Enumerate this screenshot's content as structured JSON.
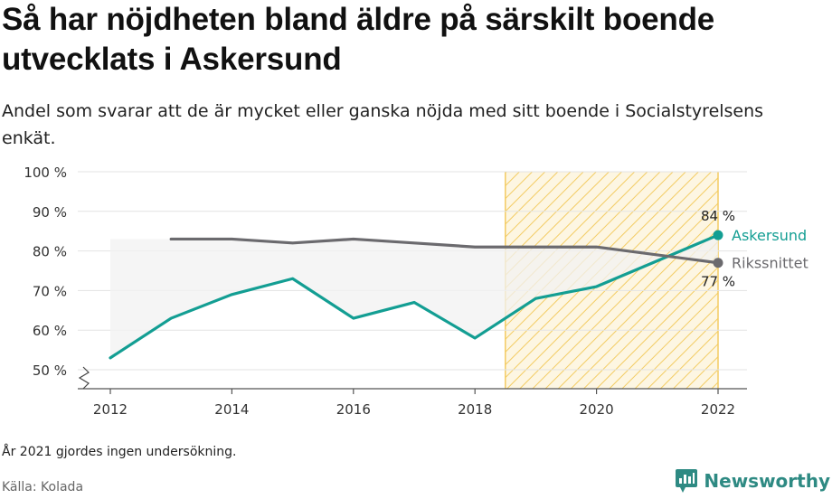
{
  "title": "Så har nöjdheten bland äldre på särskilt boende utvecklats i Askersund",
  "subtitle": "Andel som svarar att de är mycket eller ganska nöjda med sitt boende i Socialstyrelsens enkät.",
  "note": "År 2021 gjordes ingen undersökning.",
  "source": "Källa: Kolada",
  "brand": "Newsworthy",
  "colors": {
    "askersund": "#139e93",
    "riksnittet": "#6b6a6e",
    "hatch": "#f3cc63",
    "grid": "#e3e3e3",
    "brand": "#2e8a83"
  },
  "chart_data": {
    "type": "line",
    "x_ticks": [
      "2012",
      "2014",
      "2016",
      "2018",
      "2020",
      "2022"
    ],
    "y_ticks": [
      "50 %",
      "60 %",
      "70 %",
      "80 %",
      "90 %",
      "100 %"
    ],
    "ylim": [
      50,
      100
    ],
    "xlim": [
      2012,
      2022
    ],
    "y_axis_broken": true,
    "grid": true,
    "highlight_range": [
      2018.5,
      2022
    ],
    "series": [
      {
        "name": "Askersund",
        "color": "#139e93",
        "x": [
          2012,
          2013,
          2014,
          2015,
          2016,
          2017,
          2018,
          2019,
          2020,
          2022
        ],
        "values": [
          53,
          63,
          69,
          73,
          63,
          67,
          58,
          68,
          71,
          84
        ],
        "end_label": "84 %"
      },
      {
        "name": "Rikssnittet",
        "color": "#6b6a6e",
        "x": [
          2013,
          2014,
          2015,
          2016,
          2017,
          2018,
          2019,
          2020,
          2022
        ],
        "values": [
          83,
          83,
          82,
          83,
          82,
          81,
          81,
          81,
          77
        ],
        "end_label": "77 %"
      }
    ]
  }
}
